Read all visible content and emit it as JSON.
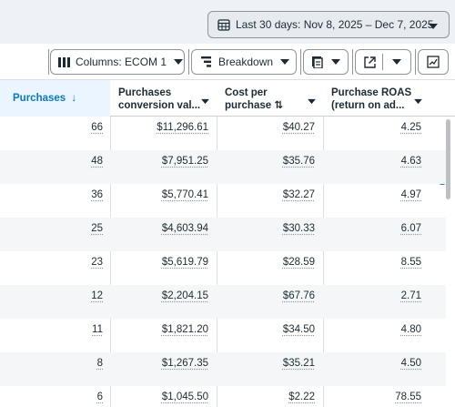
{
  "date_range": {
    "label": "Last 30 days: Nov 8, 2025 – Dec 7, 2025"
  },
  "toolbar": {
    "columns_label": "Columns: ECOM 1",
    "breakdown_label": "Breakdown"
  },
  "columns": [
    {
      "label_line1": "Purchases",
      "label_line2": "",
      "sort": "↓"
    },
    {
      "label_line1": "Purchases",
      "label_line2": "conversion val..."
    },
    {
      "label_line1": "Cost per",
      "label_line2": "purchase ⇅"
    },
    {
      "label_line1": "Purchase ROAS",
      "label_line2": "(return on ad..."
    }
  ],
  "rows": [
    {
      "purchases": "66",
      "conv_value": "$11,296.61",
      "cost_per": "$40.27",
      "roas": "4.25"
    },
    {
      "purchases": "48",
      "conv_value": "$7,951.25",
      "cost_per": "$35.76",
      "roas": "4.63"
    },
    {
      "purchases": "36",
      "conv_value": "$5,770.41",
      "cost_per": "$32.27",
      "roas": "4.97"
    },
    {
      "purchases": "25",
      "conv_value": "$4,603.94",
      "cost_per": "$30.33",
      "roas": "6.07"
    },
    {
      "purchases": "23",
      "conv_value": "$5,619.79",
      "cost_per": "$28.59",
      "roas": "8.55"
    },
    {
      "purchases": "12",
      "conv_value": "$2,204.15",
      "cost_per": "$67.76",
      "roas": "2.71"
    },
    {
      "purchases": "11",
      "conv_value": "$1,821.20",
      "cost_per": "$34.50",
      "roas": "4.80"
    },
    {
      "purchases": "8",
      "conv_value": "$1,267.35",
      "cost_per": "$35.21",
      "roas": "4.50"
    },
    {
      "purchases": "6",
      "conv_value": "$1,045.50",
      "cost_per": "$2.22",
      "roas": "78.55"
    }
  ],
  "colors": {
    "accent": "#0a78be",
    "sorted_header_bg": "#ebf5ff",
    "alt_row": "#f5f6f7"
  }
}
